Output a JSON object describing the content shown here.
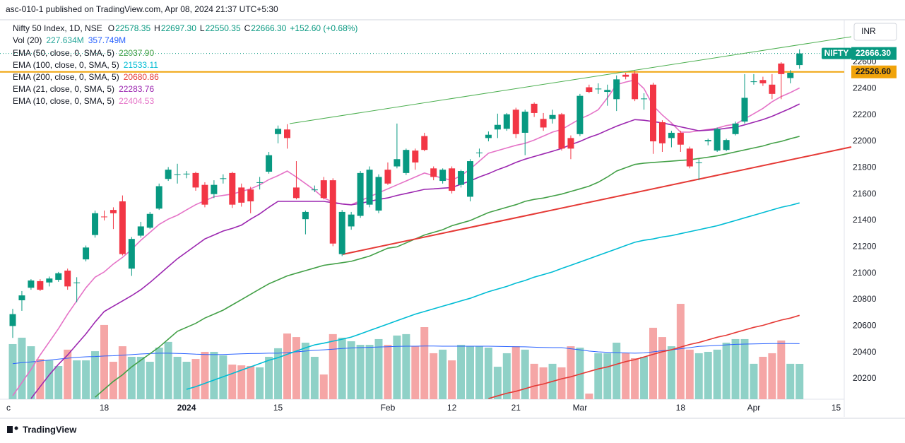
{
  "header": {
    "publisher": "asc-010-1 published on TradingView.com, Apr 08, 2024 21:37 UTC+5:30"
  },
  "footer": {
    "brand": "TradingView"
  },
  "chart_data": {
    "type": "candlestick",
    "title": "Nifty 50 Index, 1D, NSE",
    "ohlc_legend": [
      {
        "key": "O",
        "value": "22578.35"
      },
      {
        "key": "H",
        "value": "22697.30"
      },
      {
        "key": "L",
        "value": "22550.35"
      },
      {
        "key": "C",
        "value": "22666.30"
      }
    ],
    "change": "+152.60 (+0.68%)",
    "currency": "INR",
    "symbol_tag": "NIFTY",
    "last_price_label": "22666.30",
    "up_color": "#089981",
    "down_color": "#f23645",
    "ylim": [
      20045,
      22911
    ],
    "yticks": [
      20200,
      20400,
      20600,
      20800,
      21000,
      21200,
      21400,
      21600,
      21800,
      22000,
      22200,
      22400,
      22600
    ],
    "hline": {
      "value": 22526.6,
      "label": "22526.60",
      "color": "#f0a30a"
    },
    "categories": [
      "c",
      null,
      null,
      null,
      null,
      null,
      null,
      null,
      null,
      null,
      "18",
      null,
      null,
      null,
      null,
      null,
      null,
      null,
      null,
      "2024",
      null,
      null,
      null,
      null,
      null,
      null,
      null,
      null,
      null,
      "15",
      null,
      null,
      null,
      null,
      null,
      null,
      null,
      null,
      null,
      null,
      null,
      "Feb",
      null,
      null,
      null,
      null,
      null,
      null,
      "12",
      null,
      null,
      null,
      null,
      null,
      null,
      "21",
      null,
      null,
      null,
      null,
      null,
      null,
      "Mar",
      null,
      null,
      null,
      null,
      null,
      null,
      null,
      null,
      null,
      null,
      "18",
      null,
      null,
      null,
      null,
      null,
      null,
      null,
      "Apr",
      null,
      null,
      null,
      null,
      null,
      null,
      null,
      null,
      "15"
    ],
    "open": [
      20600,
      20795,
      20890,
      20940,
      20930,
      20950,
      21020,
      20925,
      21105,
      21290,
      21430,
      21480,
      21545,
      21035,
      21285,
      21345,
      21490,
      21715,
      21745,
      21750,
      21760,
      21670,
      21600,
      21720,
      21760,
      21650,
      21635,
      21690,
      21770,
      22055,
      22090,
      21650,
      21410,
      21635,
      21705,
      21705,
      21145,
      21355,
      21435,
      21520,
      21475,
      21785,
      21810,
      21760,
      21930,
      22040,
      21795,
      21700,
      21795,
      21670,
      21580,
      21915,
      22025,
      22090,
      22095,
      22240,
      22065,
      22285,
      22170,
      22170,
      22205,
      22025,
      22055,
      22410,
      22400,
      22375,
      22320,
      22505,
      22515,
      22320,
      22430,
      22145,
      22025,
      22065,
      21945,
      21840,
      22000,
      21930,
      21935,
      22055,
      22150,
      22455,
      22465,
      22430,
      22590,
      22480,
      22578.35,
      null,
      null,
      null,
      null
    ],
    "high": [
      20730,
      20865,
      20955,
      20955,
      20975,
      21010,
      21035,
      20970,
      21210,
      21475,
      21475,
      21500,
      21590,
      21275,
      21390,
      21465,
      21680,
      21805,
      21830,
      21775,
      21770,
      21690,
      21705,
      21750,
      21770,
      21680,
      21655,
      21730,
      21920,
      22120,
      22130,
      21850,
      21475,
      21665,
      21730,
      21720,
      21480,
      21465,
      21775,
      21810,
      21750,
      21840,
      22135,
      21945,
      21945,
      22065,
      21810,
      21795,
      21810,
      21785,
      21865,
      21945,
      22075,
      22210,
      22215,
      22255,
      22240,
      22295,
      22215,
      22240,
      22215,
      22045,
      22360,
      22430,
      22440,
      22430,
      22500,
      22520,
      22535,
      22365,
      22445,
      22160,
      22080,
      22080,
      21960,
      21865,
      22020,
      22105,
      22020,
      22150,
      22510,
      22510,
      22490,
      22510,
      22600,
      22540,
      22697.3,
      null,
      null,
      null,
      null
    ],
    "low": [
      20510,
      20715,
      20875,
      20865,
      20900,
      20935,
      20875,
      20780,
      21090,
      21270,
      21400,
      21335,
      21135,
      20980,
      21270,
      21335,
      21480,
      21700,
      21680,
      21720,
      21625,
      21500,
      21570,
      21680,
      21495,
      21505,
      21455,
      21635,
      21755,
      21985,
      21945,
      21560,
      21295,
      21615,
      21560,
      21205,
      21130,
      21330,
      21420,
      21500,
      21455,
      21670,
      21795,
      21745,
      21785,
      21925,
      21705,
      21680,
      21605,
      21650,
      21545,
      21880,
      22000,
      22025,
      22080,
      22025,
      21895,
      22185,
      22080,
      22135,
      21930,
      21865,
      22040,
      22365,
      22360,
      22270,
      22230,
      22470,
      22305,
      22240,
      21905,
      21920,
      21955,
      21920,
      21795,
      21705,
      21970,
      21920,
      21925,
      22045,
      22135,
      22430,
      22420,
      22320,
      22320,
      22440,
      22550.35,
      null,
      null,
      null,
      null
    ],
    "close": [
      20690,
      20832,
      20945,
      20875,
      20960,
      21000,
      20900,
      20930,
      21195,
      21455,
      21425,
      21455,
      21145,
      21260,
      21355,
      21450,
      21660,
      21785,
      21750,
      21755,
      21650,
      21520,
      21670,
      21720,
      21520,
      21535,
      21545,
      21690,
      21895,
      22095,
      22025,
      21570,
      21465,
      21635,
      21570,
      21225,
      21465,
      21445,
      21760,
      21785,
      21730,
      21680,
      21865,
      21935,
      21840,
      21935,
      21730,
      21785,
      21625,
      21775,
      21850,
      21915,
      22050,
      22125,
      22205,
      22055,
      22225,
      22215,
      22105,
      22200,
      21945,
      21945,
      22345,
      22375,
      22400,
      22390,
      22470,
      22490,
      22320,
      22325,
      22000,
      21985,
      22065,
      21975,
      21810,
      21840,
      22010,
      22095,
      22010,
      22135,
      22330,
      22455,
      22440,
      22360,
      22510,
      22520,
      22666.3,
      null,
      null,
      null,
      null
    ],
    "volume": {
      "name": "Vol (20)",
      "value_label": "227.634M",
      "ma_label": "357.749M",
      "label_color": "#26a69a",
      "ma_color": "#2962ff",
      "up_color": "#8fd1c7",
      "down_color": "#f5a6a6",
      "ylim": [
        0,
        2434
      ],
      "values": [
        355,
        396,
        341,
        259,
        250,
        214,
        319,
        250,
        250,
        309,
        478,
        241,
        341,
        273,
        273,
        241,
        332,
        369,
        273,
        241,
        259,
        305,
        305,
        282,
        223,
        218,
        214,
        205,
        273,
        328,
        423,
        400,
        364,
        273,
        159,
        419,
        396,
        373,
        350,
        350,
        387,
        350,
        410,
        419,
        341,
        464,
        296,
        319,
        250,
        350,
        341,
        341,
        332,
        209,
        296,
        341,
        319,
        228,
        205,
        228,
        205,
        341,
        332,
        36,
        296,
        296,
        364,
        296,
        264,
        273,
        460,
        400,
        341,
        614,
        319,
        296,
        305,
        319,
        364,
        387,
        387,
        228,
        273,
        296,
        378,
        228,
        227.634,
        null,
        null,
        null,
        null
      ],
      "ma_values": [
        229,
        235,
        240,
        246,
        252,
        258,
        264,
        270,
        273,
        275,
        278,
        280,
        283,
        287,
        291,
        294,
        296,
        296,
        295,
        293,
        290,
        288,
        287,
        288,
        290,
        292,
        294,
        295,
        296,
        296,
        300,
        305,
        310,
        315,
        318,
        322,
        326,
        330,
        332,
        334,
        336,
        338,
        340,
        341,
        341,
        342,
        342,
        341,
        341,
        341,
        341,
        341,
        341,
        340,
        339,
        338,
        337,
        335,
        333,
        332,
        332,
        325,
        318,
        310,
        305,
        302,
        300,
        298,
        296,
        298,
        305,
        312,
        318,
        325,
        332,
        340,
        343,
        346,
        350,
        353,
        355,
        356,
        357,
        358,
        358,
        358,
        357.749,
        null,
        null,
        null,
        null
      ]
    },
    "series": [
      {
        "name": "EMA (50, close, 0, SMA, 5)",
        "value_label": "22037.90",
        "color": "#43a047",
        "values": [
          null,
          null,
          null,
          null,
          null,
          null,
          null,
          null,
          null,
          20060,
          20120,
          20180,
          20230,
          20290,
          20340,
          20390,
          20440,
          20500,
          20560,
          20590,
          20620,
          20660,
          20690,
          20720,
          20760,
          20800,
          20840,
          20880,
          20920,
          20950,
          20980,
          21000,
          21020,
          21040,
          21060,
          21070,
          21080,
          21090,
          21110,
          21130,
          21160,
          21190,
          21200,
          21230,
          21260,
          21290,
          21310,
          21330,
          21360,
          21380,
          21400,
          21430,
          21460,
          21480,
          21500,
          21520,
          21545,
          21560,
          21570,
          21585,
          21600,
          21620,
          21640,
          21660,
          21690,
          21730,
          21775,
          21800,
          21825,
          21835,
          21840,
          21845,
          21850,
          21855,
          21860,
          21870,
          21880,
          21890,
          21905,
          21920,
          21935,
          21950,
          21965,
          21985,
          22000,
          22020,
          22037.9,
          null,
          null,
          null,
          null
        ]
      },
      {
        "name": "EMA (100, close, 0, SMA, 5)",
        "value_label": "21533.11",
        "color": "#00bcd4",
        "values": [
          null,
          null,
          null,
          null,
          null,
          null,
          null,
          null,
          null,
          null,
          null,
          null,
          null,
          null,
          null,
          null,
          null,
          null,
          null,
          20120,
          20140,
          20165,
          20190,
          20215,
          20240,
          20265,
          20290,
          20315,
          20340,
          20360,
          20385,
          20410,
          20435,
          20457,
          20470,
          20485,
          20500,
          20516,
          20540,
          20565,
          20590,
          20615,
          20640,
          20665,
          20690,
          20710,
          20730,
          20750,
          20770,
          20790,
          20810,
          20835,
          20860,
          20880,
          20900,
          20925,
          20945,
          20970,
          20990,
          21010,
          21036,
          21060,
          21085,
          21110,
          21135,
          21160,
          21185,
          21210,
          21235,
          21250,
          21260,
          21275,
          21285,
          21300,
          21315,
          21330,
          21345,
          21360,
          21380,
          21400,
          21420,
          21440,
          21460,
          21480,
          21500,
          21515,
          21533.11,
          null,
          null,
          null,
          null
        ]
      },
      {
        "name": "EMA (200, close, 0, SMA, 5)",
        "value_label": "20680.86",
        "color": "#e53935",
        "values": [
          null,
          null,
          null,
          null,
          null,
          null,
          null,
          null,
          null,
          null,
          null,
          null,
          null,
          null,
          null,
          null,
          null,
          null,
          null,
          null,
          null,
          null,
          null,
          null,
          null,
          null,
          null,
          null,
          null,
          null,
          null,
          null,
          null,
          null,
          null,
          null,
          null,
          null,
          null,
          null,
          null,
          null,
          null,
          null,
          null,
          null,
          null,
          null,
          null,
          null,
          null,
          null,
          20050,
          20070,
          20090,
          20105,
          20125,
          20145,
          20160,
          20180,
          20200,
          20215,
          20235,
          20255,
          20275,
          20290,
          20310,
          20330,
          20345,
          20365,
          20385,
          20405,
          20420,
          20440,
          20460,
          20475,
          20495,
          20515,
          20530,
          20550,
          20570,
          20590,
          20605,
          20625,
          20645,
          20660,
          20680.86,
          null,
          null,
          null,
          null
        ]
      },
      {
        "name": "EMA (21, close, 0, SMA, 5)",
        "value_label": "22283.76",
        "color": "#9c27b0",
        "values": [
          null,
          null,
          20050,
          20140,
          20230,
          20310,
          20380,
          20460,
          20540,
          20630,
          20710,
          20750,
          20790,
          20830,
          20875,
          20930,
          20990,
          21050,
          21110,
          21160,
          21210,
          21260,
          21290,
          21320,
          21340,
          21365,
          21410,
          21450,
          21500,
          21545,
          21545,
          21545,
          21545,
          21545,
          21545,
          21535,
          21525,
          21518,
          21530,
          21545,
          21560,
          21571,
          21590,
          21605,
          21620,
          21636,
          21640,
          21645,
          21650,
          21675,
          21700,
          21730,
          21755,
          21785,
          21810,
          21840,
          21865,
          21885,
          21905,
          21925,
          21946,
          21975,
          22000,
          22030,
          22054,
          22085,
          22115,
          22140,
          22165,
          22160,
          22150,
          22140,
          22125,
          22110,
          22095,
          22080,
          22085,
          22090,
          22100,
          22107,
          22125,
          22145,
          22165,
          22190,
          22220,
          22250,
          22283.76,
          null,
          null,
          null,
          null
        ]
      },
      {
        "name": "EMA (10, close, 0, SMA, 5)",
        "value_label": "22404.53",
        "color": "#e573c7",
        "values": [
          20071,
          20170,
          20270,
          20380,
          20480,
          20580,
          20690,
          20790,
          20890,
          20970,
          21010,
          21070,
          21120,
          21180,
          21250,
          21310,
          21370,
          21410,
          21440,
          21480,
          21520,
          21550,
          21580,
          21590,
          21600,
          21620,
          21640,
          21670,
          21710,
          21740,
          21775,
          21730,
          21680,
          21630,
          21570,
          21540,
          21525,
          21520,
          21550,
          21580,
          21610,
          21640,
          21670,
          21700,
          21730,
          21760,
          21740,
          21720,
          21705,
          21740,
          21790,
          21850,
          21910,
          21930,
          21950,
          21970,
          21985,
          22010,
          22040,
          22070,
          22090,
          22130,
          22170,
          22200,
          22240,
          22330,
          22430,
          22450,
          22465,
          22400,
          22270,
          22200,
          22140,
          22070,
          22070,
          22080,
          22090,
          22100,
          22120,
          22130,
          22170,
          22210,
          22250,
          22300,
          22340,
          22370,
          22404.53,
          null,
          null,
          null,
          null
        ]
      }
    ]
  }
}
